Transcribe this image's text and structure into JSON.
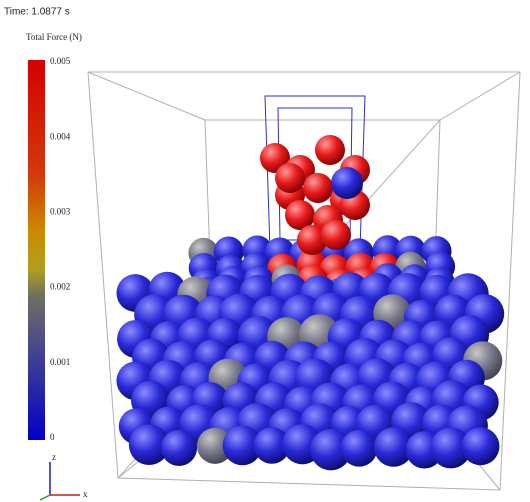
{
  "header": {
    "time": "Time: 1.0877 s"
  },
  "colorbar": {
    "title": "Total Force (N)",
    "ticks": [
      "0.005",
      "0.004",
      "0.003",
      "0.002",
      "0.001",
      "0"
    ]
  },
  "axes": {
    "z": "z",
    "x": "x"
  }
}
